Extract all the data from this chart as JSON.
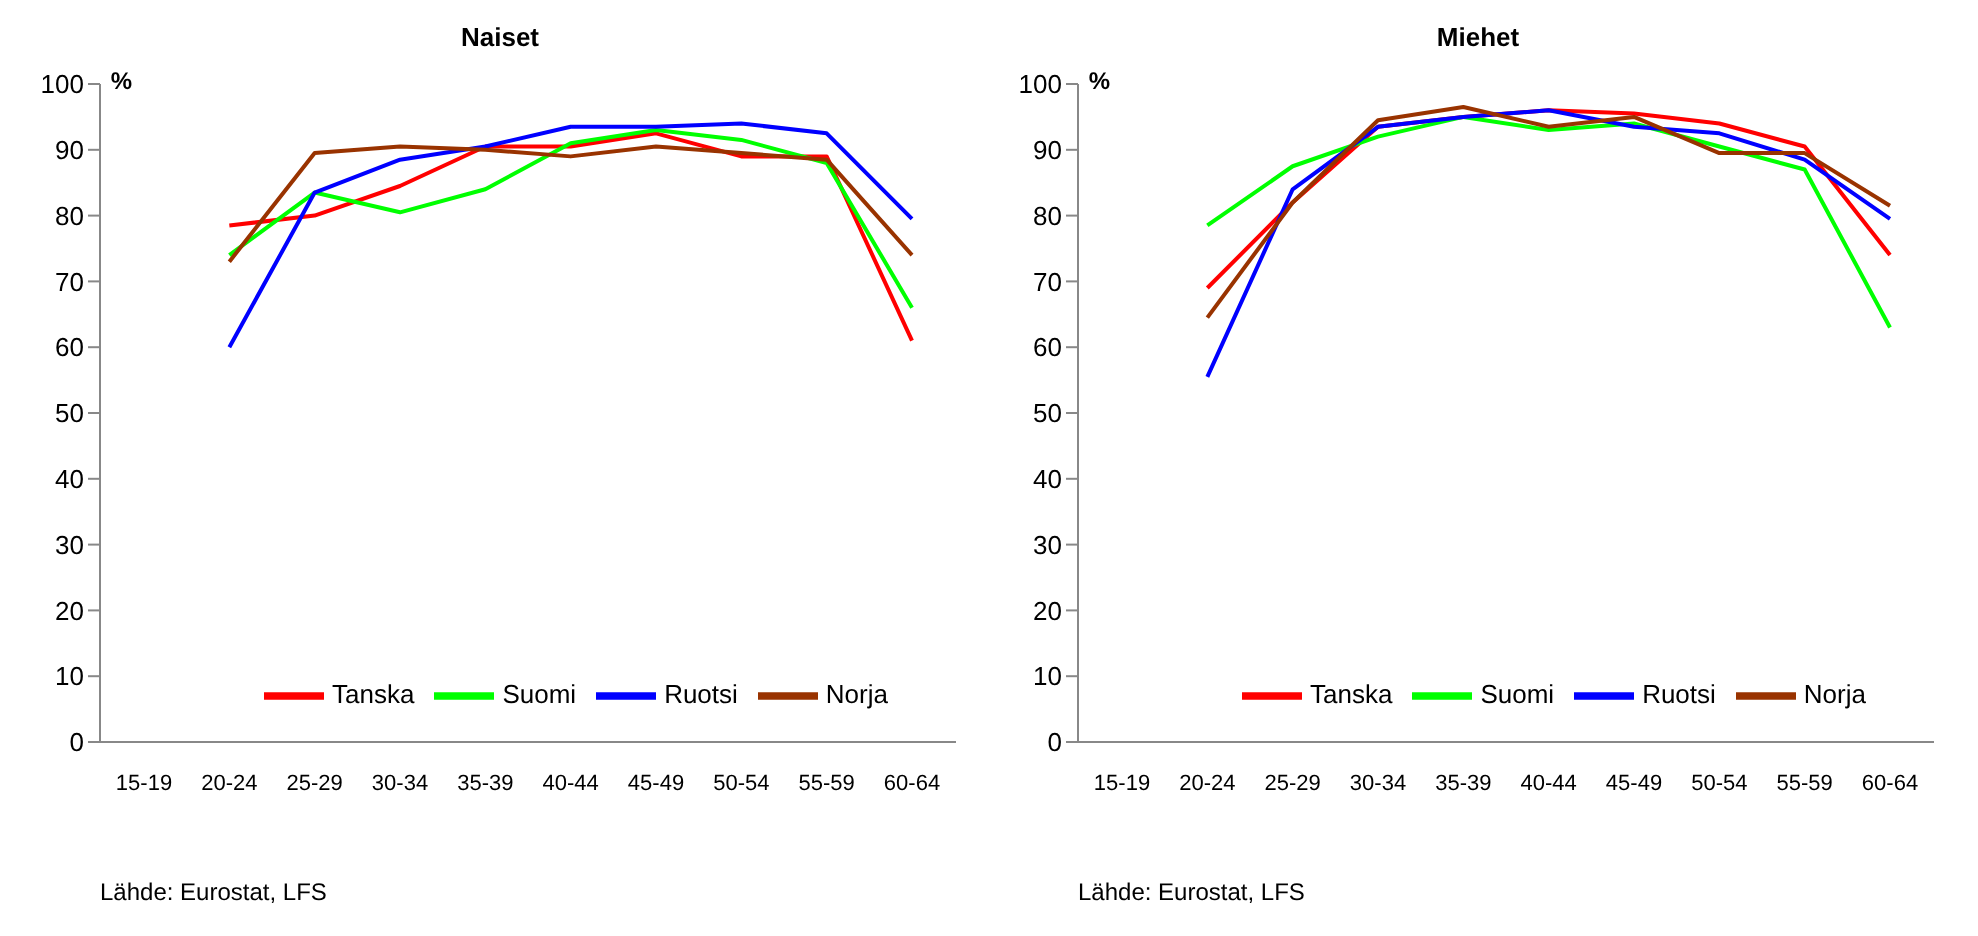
{
  "chart_data": [
    {
      "type": "line",
      "title": "Naiset",
      "ylabel": "%",
      "categories": [
        "15-19",
        "20-24",
        "25-29",
        "30-34",
        "35-39",
        "40-44",
        "45-49",
        "50-54",
        "55-59",
        "60-64"
      ],
      "ylim": [
        0,
        100
      ],
      "yticks": [
        0,
        10,
        20,
        30,
        40,
        50,
        60,
        70,
        80,
        90,
        100
      ],
      "grid": false,
      "legend": "bottom",
      "annotations": [
        "Lähde: Eurostat, LFS"
      ],
      "series": [
        {
          "name": "Tanska",
          "color": "#ff0000",
          "values": [
            null,
            78.5,
            80,
            84.5,
            90.5,
            90.5,
            92.5,
            89,
            89,
            61
          ]
        },
        {
          "name": "Suomi",
          "color": "#00ff00",
          "values": [
            null,
            74,
            83.5,
            80.5,
            84,
            91,
            93,
            91.5,
            88,
            66
          ]
        },
        {
          "name": "Ruotsi",
          "color": "#0000ff",
          "values": [
            null,
            60,
            83.5,
            88.5,
            90.5,
            93.5,
            93.5,
            94,
            92.5,
            79.5
          ]
        },
        {
          "name": "Norja",
          "color": "#993300",
          "values": [
            null,
            73,
            89.5,
            90.5,
            90,
            89,
            90.5,
            89.5,
            88.5,
            74
          ]
        }
      ]
    },
    {
      "type": "line",
      "title": "Miehet",
      "ylabel": "%",
      "categories": [
        "15-19",
        "20-24",
        "25-29",
        "30-34",
        "35-39",
        "40-44",
        "45-49",
        "50-54",
        "55-59",
        "60-64"
      ],
      "ylim": [
        0,
        100
      ],
      "yticks": [
        0,
        10,
        20,
        30,
        40,
        50,
        60,
        70,
        80,
        90,
        100
      ],
      "grid": false,
      "legend": "bottom",
      "annotations": [
        "Lähde: Eurostat, LFS"
      ],
      "series": [
        {
          "name": "Tanska",
          "color": "#ff0000",
          "values": [
            null,
            69,
            82,
            93.5,
            95,
            96,
            95.5,
            94,
            90.5,
            74
          ]
        },
        {
          "name": "Suomi",
          "color": "#00ff00",
          "values": [
            null,
            78.5,
            87.5,
            92,
            95,
            93,
            94,
            90.5,
            87,
            63
          ]
        },
        {
          "name": "Ruotsi",
          "color": "#0000ff",
          "values": [
            null,
            55.5,
            84,
            93.5,
            95,
            96,
            93.5,
            92.5,
            88.5,
            79.5
          ]
        },
        {
          "name": "Norja",
          "color": "#993300",
          "values": [
            null,
            64.5,
            82,
            94.5,
            96.5,
            93.5,
            95,
            89.5,
            89.5,
            81.5
          ]
        }
      ]
    }
  ]
}
